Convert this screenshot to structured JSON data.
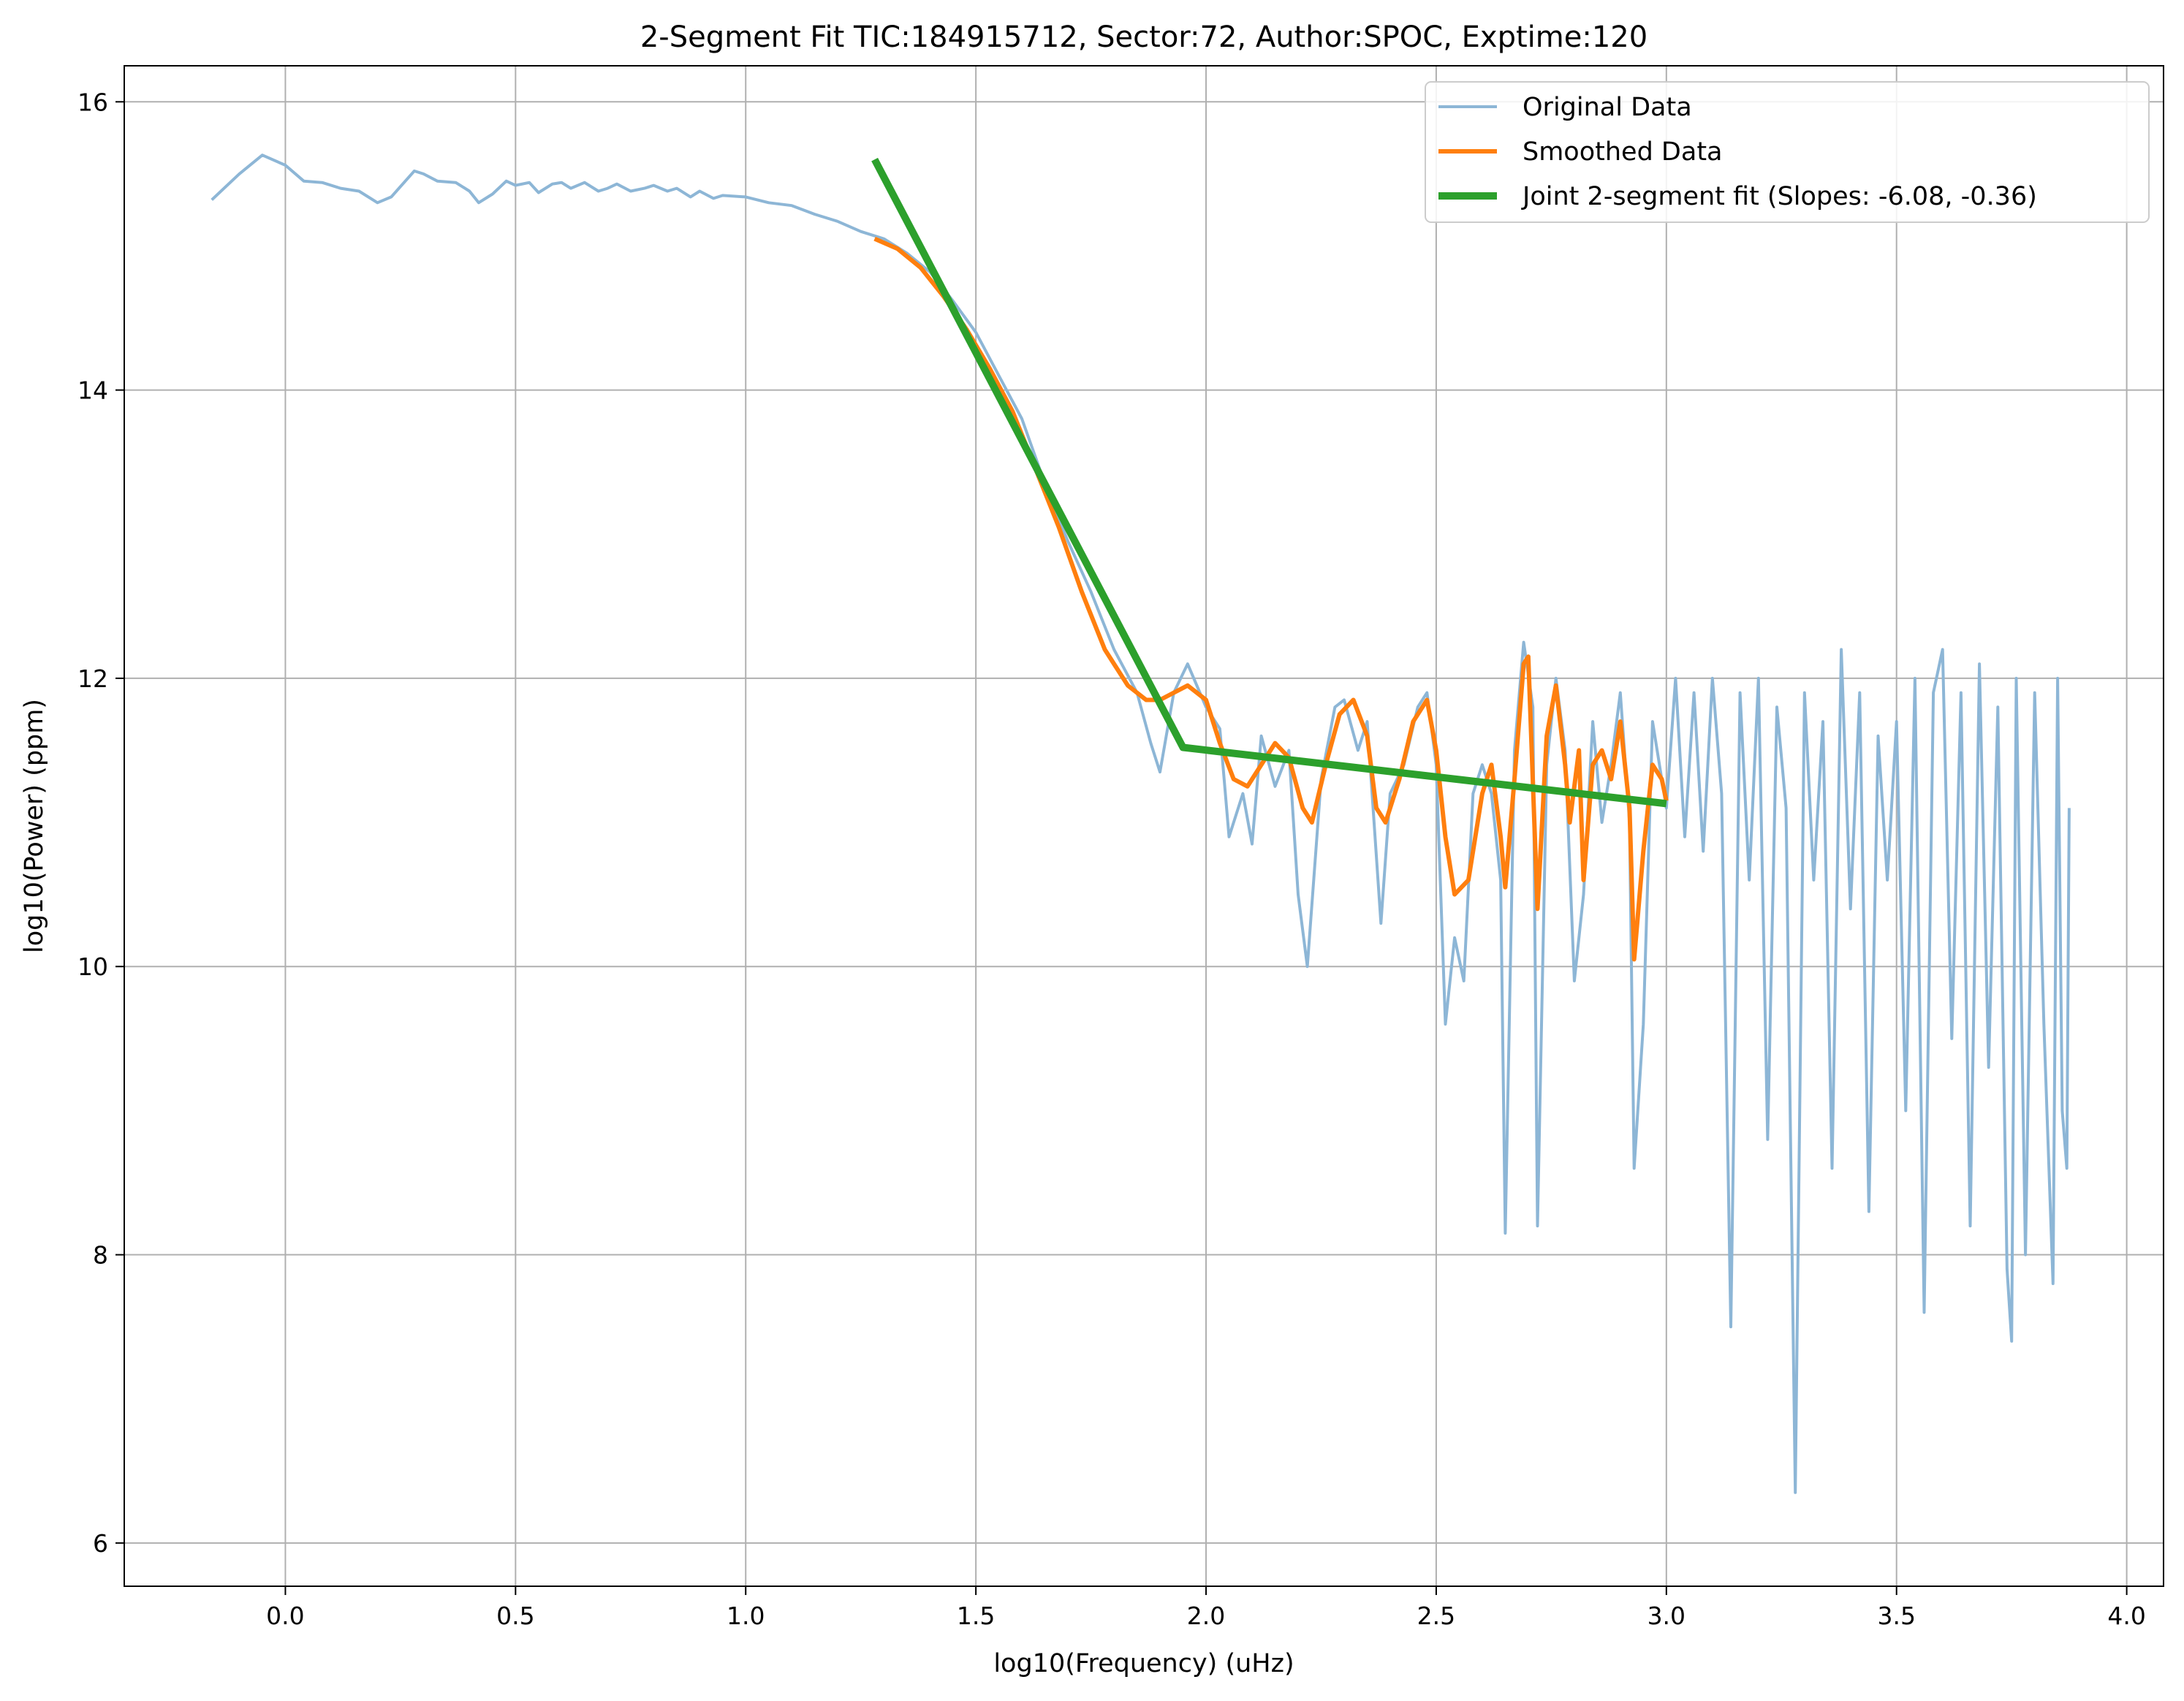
{
  "chart_data": {
    "type": "line",
    "title": "2-Segment Fit TIC:184915712, Sector:72, Author:SPOC, Exptime:120",
    "xlabel": "log10(Frequency) (uHz)",
    "ylabel": "log10(Power) (ppm)",
    "xlim": [
      -0.35,
      4.08
    ],
    "ylim": [
      5.7,
      16.25
    ],
    "xticks": [
      0.0,
      0.5,
      1.0,
      1.5,
      2.0,
      2.5,
      3.0,
      3.5,
      4.0
    ],
    "xtick_labels": [
      "0.0",
      "0.5",
      "1.0",
      "1.5",
      "2.0",
      "2.5",
      "3.0",
      "3.5",
      "4.0"
    ],
    "yticks": [
      6,
      8,
      10,
      12,
      14,
      16
    ],
    "ytick_labels": [
      "6",
      "8",
      "10",
      "12",
      "14",
      "16"
    ],
    "grid": true,
    "legend_position": "upper right",
    "colors": {
      "original": "#8db6d6",
      "smoothed": "#ff7f0e",
      "fit": "#2ca02c",
      "grid": "#b0b0b0"
    },
    "series": [
      {
        "name": "Original Data",
        "style": "thin translucent line",
        "points": [
          [
            -0.16,
            15.32
          ],
          [
            -0.1,
            15.5
          ],
          [
            -0.05,
            15.63
          ],
          [
            0.0,
            15.56
          ],
          [
            0.04,
            15.45
          ],
          [
            0.08,
            15.44
          ],
          [
            0.12,
            15.4
          ],
          [
            0.16,
            15.38
          ],
          [
            0.2,
            15.3
          ],
          [
            0.23,
            15.34
          ],
          [
            0.28,
            15.52
          ],
          [
            0.3,
            15.5
          ],
          [
            0.33,
            15.45
          ],
          [
            0.37,
            15.44
          ],
          [
            0.4,
            15.38
          ],
          [
            0.42,
            15.3
          ],
          [
            0.45,
            15.36
          ],
          [
            0.48,
            15.45
          ],
          [
            0.5,
            15.42
          ],
          [
            0.53,
            15.44
          ],
          [
            0.55,
            15.37
          ],
          [
            0.58,
            15.43
          ],
          [
            0.6,
            15.44
          ],
          [
            0.62,
            15.4
          ],
          [
            0.65,
            15.44
          ],
          [
            0.68,
            15.38
          ],
          [
            0.7,
            15.4
          ],
          [
            0.72,
            15.43
          ],
          [
            0.75,
            15.38
          ],
          [
            0.78,
            15.4
          ],
          [
            0.8,
            15.42
          ],
          [
            0.83,
            15.38
          ],
          [
            0.85,
            15.4
          ],
          [
            0.88,
            15.34
          ],
          [
            0.9,
            15.38
          ],
          [
            0.93,
            15.33
          ],
          [
            0.95,
            15.35
          ],
          [
            1.0,
            15.34
          ],
          [
            1.05,
            15.3
          ],
          [
            1.1,
            15.28
          ],
          [
            1.15,
            15.22
          ],
          [
            1.2,
            15.17
          ],
          [
            1.25,
            15.1
          ],
          [
            1.3,
            15.05
          ],
          [
            1.35,
            14.95
          ],
          [
            1.4,
            14.82
          ],
          [
            1.45,
            14.62
          ],
          [
            1.5,
            14.4
          ],
          [
            1.55,
            14.1
          ],
          [
            1.6,
            13.8
          ],
          [
            1.65,
            13.35
          ],
          [
            1.7,
            12.95
          ],
          [
            1.75,
            12.6
          ],
          [
            1.8,
            12.2
          ],
          [
            1.85,
            11.9
          ],
          [
            1.88,
            11.55
          ],
          [
            1.9,
            11.35
          ],
          [
            1.93,
            11.9
          ],
          [
            1.96,
            12.1
          ],
          [
            2.0,
            11.8
          ],
          [
            2.03,
            11.65
          ],
          [
            2.05,
            10.9
          ],
          [
            2.08,
            11.2
          ],
          [
            2.1,
            10.85
          ],
          [
            2.12,
            11.6
          ],
          [
            2.15,
            11.25
          ],
          [
            2.18,
            11.5
          ],
          [
            2.2,
            10.5
          ],
          [
            2.22,
            10.0
          ],
          [
            2.25,
            11.3
          ],
          [
            2.28,
            11.8
          ],
          [
            2.3,
            11.85
          ],
          [
            2.33,
            11.5
          ],
          [
            2.35,
            11.7
          ],
          [
            2.38,
            10.3
          ],
          [
            2.4,
            11.2
          ],
          [
            2.43,
            11.4
          ],
          [
            2.46,
            11.8
          ],
          [
            2.48,
            11.9
          ],
          [
            2.5,
            11.4
          ],
          [
            2.52,
            9.6
          ],
          [
            2.54,
            10.2
          ],
          [
            2.56,
            9.9
          ],
          [
            2.58,
            11.2
          ],
          [
            2.6,
            11.4
          ],
          [
            2.62,
            11.2
          ],
          [
            2.64,
            10.6
          ],
          [
            2.65,
            8.15
          ],
          [
            2.67,
            11.5
          ],
          [
            2.69,
            12.25
          ],
          [
            2.71,
            11.8
          ],
          [
            2.72,
            8.2
          ],
          [
            2.74,
            11.4
          ],
          [
            2.76,
            12.0
          ],
          [
            2.78,
            11.5
          ],
          [
            2.8,
            9.9
          ],
          [
            2.82,
            10.5
          ],
          [
            2.84,
            11.7
          ],
          [
            2.86,
            11.0
          ],
          [
            2.88,
            11.4
          ],
          [
            2.9,
            11.9
          ],
          [
            2.92,
            11.0
          ],
          [
            2.93,
            8.6
          ],
          [
            2.95,
            9.6
          ],
          [
            2.97,
            11.7
          ],
          [
            3.0,
            11.1
          ],
          [
            3.02,
            12.0
          ],
          [
            3.04,
            10.9
          ],
          [
            3.06,
            11.9
          ],
          [
            3.08,
            10.8
          ],
          [
            3.1,
            12.0
          ],
          [
            3.12,
            11.2
          ],
          [
            3.14,
            7.5
          ],
          [
            3.16,
            11.9
          ],
          [
            3.18,
            10.6
          ],
          [
            3.2,
            12.0
          ],
          [
            3.22,
            8.8
          ],
          [
            3.24,
            11.8
          ],
          [
            3.26,
            11.1
          ],
          [
            3.28,
            6.35
          ],
          [
            3.3,
            11.9
          ],
          [
            3.32,
            10.6
          ],
          [
            3.34,
            11.7
          ],
          [
            3.36,
            8.6
          ],
          [
            3.38,
            12.2
          ],
          [
            3.4,
            10.4
          ],
          [
            3.42,
            11.9
          ],
          [
            3.44,
            8.3
          ],
          [
            3.46,
            11.6
          ],
          [
            3.48,
            10.6
          ],
          [
            3.5,
            11.7
          ],
          [
            3.52,
            9.0
          ],
          [
            3.54,
            12.0
          ],
          [
            3.56,
            7.6
          ],
          [
            3.58,
            11.9
          ],
          [
            3.6,
            12.2
          ],
          [
            3.62,
            9.5
          ],
          [
            3.64,
            11.9
          ],
          [
            3.66,
            8.2
          ],
          [
            3.68,
            12.1
          ],
          [
            3.7,
            9.3
          ],
          [
            3.72,
            11.8
          ],
          [
            3.74,
            7.9
          ],
          [
            3.75,
            7.4
          ],
          [
            3.76,
            12.0
          ],
          [
            3.78,
            8.0
          ],
          [
            3.8,
            11.9
          ],
          [
            3.82,
            9.6
          ],
          [
            3.84,
            7.8
          ],
          [
            3.85,
            12.0
          ],
          [
            3.86,
            9.0
          ],
          [
            3.87,
            8.6
          ],
          [
            3.875,
            11.1
          ]
        ]
      },
      {
        "name": "Smoothed Data",
        "style": "line",
        "points": [
          [
            1.28,
            15.05
          ],
          [
            1.33,
            14.98
          ],
          [
            1.38,
            14.85
          ],
          [
            1.43,
            14.65
          ],
          [
            1.48,
            14.42
          ],
          [
            1.53,
            14.15
          ],
          [
            1.58,
            13.85
          ],
          [
            1.63,
            13.45
          ],
          [
            1.68,
            13.05
          ],
          [
            1.73,
            12.6
          ],
          [
            1.78,
            12.2
          ],
          [
            1.83,
            11.95
          ],
          [
            1.87,
            11.85
          ],
          [
            1.9,
            11.85
          ],
          [
            1.93,
            11.9
          ],
          [
            1.96,
            11.95
          ],
          [
            2.0,
            11.85
          ],
          [
            2.03,
            11.55
          ],
          [
            2.06,
            11.3
          ],
          [
            2.09,
            11.25
          ],
          [
            2.12,
            11.4
          ],
          [
            2.15,
            11.55
          ],
          [
            2.18,
            11.45
          ],
          [
            2.21,
            11.1
          ],
          [
            2.23,
            11.0
          ],
          [
            2.26,
            11.4
          ],
          [
            2.29,
            11.75
          ],
          [
            2.32,
            11.85
          ],
          [
            2.35,
            11.6
          ],
          [
            2.37,
            11.1
          ],
          [
            2.39,
            11.0
          ],
          [
            2.42,
            11.3
          ],
          [
            2.45,
            11.7
          ],
          [
            2.48,
            11.85
          ],
          [
            2.5,
            11.5
          ],
          [
            2.52,
            10.9
          ],
          [
            2.54,
            10.5
          ],
          [
            2.57,
            10.6
          ],
          [
            2.6,
            11.2
          ],
          [
            2.62,
            11.4
          ],
          [
            2.64,
            10.9
          ],
          [
            2.65,
            10.55
          ],
          [
            2.67,
            11.3
          ],
          [
            2.69,
            12.1
          ],
          [
            2.7,
            12.15
          ],
          [
            2.72,
            10.4
          ],
          [
            2.74,
            11.6
          ],
          [
            2.76,
            11.95
          ],
          [
            2.78,
            11.4
          ],
          [
            2.79,
            11.0
          ],
          [
            2.81,
            11.5
          ],
          [
            2.82,
            10.6
          ],
          [
            2.84,
            11.4
          ],
          [
            2.86,
            11.5
          ],
          [
            2.88,
            11.3
          ],
          [
            2.9,
            11.7
          ],
          [
            2.92,
            11.1
          ],
          [
            2.93,
            10.05
          ],
          [
            2.95,
            10.8
          ],
          [
            2.97,
            11.4
          ],
          [
            2.99,
            11.3
          ],
          [
            3.0,
            11.15
          ]
        ]
      },
      {
        "name": "Joint 2-segment fit (Slopes: -6.08, -0.36)",
        "style": "thick line",
        "points": [
          [
            1.28,
            15.6
          ],
          [
            1.95,
            11.52
          ],
          [
            3.0,
            11.13
          ]
        ]
      }
    ]
  }
}
